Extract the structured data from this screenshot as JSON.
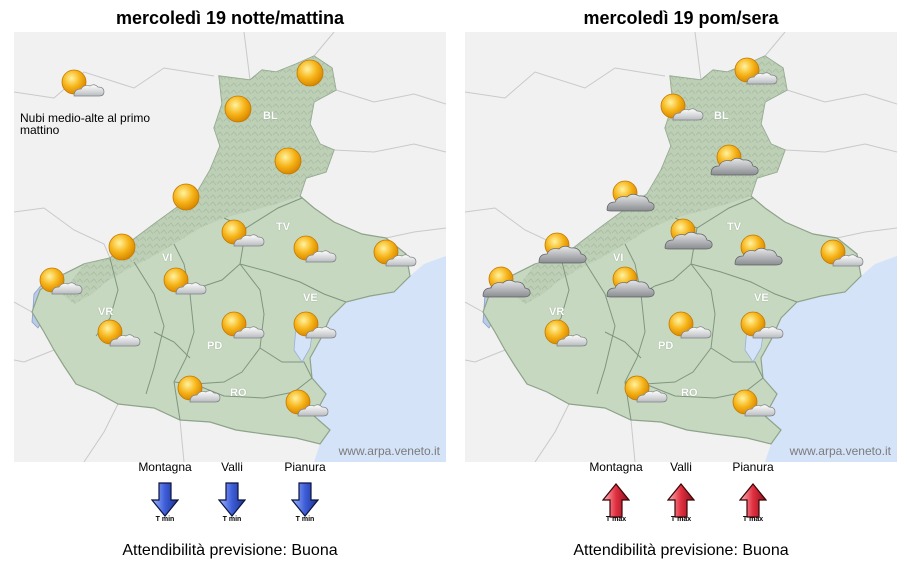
{
  "credit": "www.arpa.veneto.it",
  "provinces": [
    "BL",
    "TV",
    "VI",
    "VR",
    "VE",
    "PD",
    "RO"
  ],
  "reliability_label": "Attendibilità previsione:",
  "reliability_value": "Buona",
  "panels": [
    {
      "title": "mercoledì 19 notte/mattina",
      "note": "Nubi medio-alte al primo mattino",
      "icons": [
        "sun-cloud",
        "sun",
        "sun",
        "sun",
        "sun",
        "sun",
        "sun-cloud",
        "sun-cloud",
        "sun-cloud",
        "sun-cloud",
        "sun-cloud",
        "sun-cloud",
        "sun-cloud",
        "sun-cloud",
        "sun-cloud",
        "sun-cloud"
      ],
      "temps": [
        {
          "label": "Montagna",
          "trend": "down",
          "sub": "T min"
        },
        {
          "label": "Valli",
          "trend": "down",
          "sub": "T min"
        },
        {
          "label": "Pianura",
          "trend": "down",
          "sub": "T min"
        }
      ]
    },
    {
      "title": "mercoledì 19 pom/sera",
      "note": "",
      "icons": [
        "sun-cloud",
        "sun-cloud",
        "cloudy-sun",
        "cloudy-sun",
        "cloudy-sun",
        "cloudy-sun",
        "cloudy-sun",
        "cloudy-sun",
        "cloudy-sun",
        "sun-cloud",
        "sun-cloud",
        "sun-cloud",
        "sun-cloud",
        "sun-cloud",
        "sun-cloud"
      ],
      "temps": [
        {
          "label": "Montagna",
          "trend": "up",
          "sub": "T max"
        },
        {
          "label": "Valli",
          "trend": "up",
          "sub": "T max"
        },
        {
          "label": "Pianura",
          "trend": "up",
          "sub": "T max"
        }
      ]
    }
  ],
  "colors": {
    "land": "#c7d8c0",
    "sea": "#d4e3f8",
    "border": "#7f967f",
    "arrow_down": "#3d5ed8",
    "arrow_up": "#e03040"
  }
}
